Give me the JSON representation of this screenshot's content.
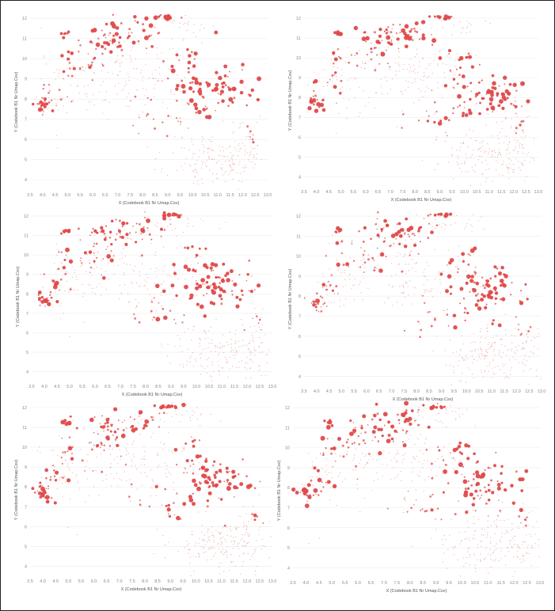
{
  "chart_data": [
    {
      "type": "scatter",
      "xlabel": "X (Codebook B1 Nr Umap.Csv)",
      "ylabel": "Y (Codebook B1 Nr Umap.Csv)",
      "xlim": [
        3.5,
        13.0
      ],
      "ylim": [
        3.5,
        12.2
      ],
      "xticks": [
        "3.5",
        "4.0",
        "4.5",
        "5.0",
        "5.5",
        "6.0",
        "6.5",
        "7.0",
        "7.5",
        "8.0",
        "8.5",
        "9.0",
        "9.5",
        "10.0",
        "10.5",
        "11.0",
        "11.5",
        "12.0",
        "12.5",
        "13.0"
      ],
      "yticks": [
        "4",
        "5",
        "6",
        "7",
        "8",
        "9",
        "10",
        "11",
        "12"
      ],
      "grid": "horizontal",
      "seed": 11
    },
    {
      "type": "scatter",
      "xlabel": "X (Codebook B1 Nr Umap.Csv)",
      "ylabel": "Y (Codebook B1 Nr Umap.Csv)",
      "xlim": [
        3.5,
        13.0
      ],
      "ylim": [
        3.5,
        12.2
      ],
      "xticks": [
        "3.5",
        "4.0",
        "4.5",
        "5.0",
        "5.5",
        "6.0",
        "6.5",
        "7.0",
        "7.5",
        "8.0",
        "8.5",
        "9.0",
        "9.5",
        "10.0",
        "10.5",
        "11.0",
        "11.5",
        "12.0",
        "12.5",
        "13.0"
      ],
      "yticks": [
        "4",
        "5",
        "6",
        "7",
        "8",
        "9",
        "10",
        "11",
        "12"
      ],
      "grid": "horizontal",
      "seed": 23
    },
    {
      "type": "scatter",
      "xlabel": "X (Codebook B1 Nr Umap.Csv)",
      "ylabel": "Y (Codebook B1 Nr Umap.Csv)",
      "xlim": [
        3.5,
        13.0
      ],
      "ylim": [
        3.5,
        12.2
      ],
      "xticks": [
        "3.5",
        "4.0",
        "4.5",
        "5.0",
        "5.5",
        "6.0",
        "6.5",
        "7.0",
        "7.5",
        "8.0",
        "8.5",
        "9.0",
        "9.5",
        "10.0",
        "10.5",
        "11.0",
        "11.5",
        "12.0",
        "12.5",
        "13.0"
      ],
      "yticks": [
        "4",
        "5",
        "6",
        "7",
        "8",
        "9",
        "10",
        "11",
        "12"
      ],
      "grid": "horizontal",
      "seed": 37
    },
    {
      "type": "scatter",
      "xlabel": "X (Codebook B1 Nr Umap.Csv)",
      "ylabel": "Y (Codebook B1 Nr Umap.Csv)",
      "xlim": [
        3.5,
        13.0
      ],
      "ylim": [
        3.5,
        12.2
      ],
      "xticks": [
        "3.5",
        "4.0",
        "4.5",
        "5.0",
        "5.5",
        "6.0",
        "6.5",
        "7.0",
        "7.5",
        "8.0",
        "8.5",
        "9.0",
        "9.5",
        "10.0",
        "10.5",
        "11.0",
        "11.5",
        "12.0",
        "12.5",
        "13.0"
      ],
      "yticks": [
        "4",
        "5",
        "6",
        "7",
        "8",
        "9",
        "10",
        "11",
        "12"
      ],
      "grid": "horizontal",
      "seed": 41
    },
    {
      "type": "scatter",
      "xlabel": "X (Codebook B1 Nr Umap.Csv)",
      "ylabel": "Y (Codebook B1 Nr Umap.Csv)",
      "xlim": [
        3.5,
        13.0
      ],
      "ylim": [
        3.5,
        12.2
      ],
      "xticks": [
        "3.5",
        "4.0",
        "4.5",
        "5.0",
        "5.5",
        "6.0",
        "6.5",
        "7.0",
        "7.5",
        "8.0",
        "8.5",
        "9.0",
        "9.5",
        "10.0",
        "10.5",
        "11.0",
        "11.5",
        "12.0",
        "12.5",
        "13.0"
      ],
      "yticks": [
        "4",
        "5",
        "6",
        "7",
        "8",
        "9",
        "10",
        "11",
        "12"
      ],
      "grid": "horizontal",
      "seed": 53
    },
    {
      "type": "scatter",
      "xlabel": "X (Codebook B1 Nr Umap.Csv)",
      "ylabel": "Y (Codebook B1 Nr Umap.Csv)",
      "xlim": [
        3.5,
        13.0
      ],
      "ylim": [
        3.5,
        12.2
      ],
      "xticks": [
        "3.5",
        "4.0",
        "4.5",
        "5.0",
        "5.5",
        "6.0",
        "6.5",
        "7.0",
        "7.5",
        "8.0",
        "8.5",
        "9.0",
        "9.5",
        "10.0",
        "10.5",
        "11.0",
        "11.5",
        "12.0",
        "12.5",
        "13.0"
      ],
      "yticks": [
        "4",
        "5",
        "6",
        "7",
        "8",
        "9",
        "10",
        "11",
        "12"
      ],
      "grid": "horizontal",
      "seed": 67
    }
  ],
  "colors": {
    "point": "#e04a4a",
    "grid": "#ececec",
    "tick_text": "#8a8a8a",
    "frame": "#222222"
  },
  "clusters": [
    {
      "x": 4.0,
      "y": 7.75,
      "sx": 0.22,
      "sy": 0.25,
      "n": 22,
      "big": 0.55
    },
    {
      "x": 4.5,
      "y": 8.5,
      "sx": 0.3,
      "sy": 0.5,
      "n": 12,
      "big": 0.35
    },
    {
      "x": 4.9,
      "y": 11.25,
      "sx": 0.12,
      "sy": 0.08,
      "n": 6,
      "big": 0.9
    },
    {
      "x": 4.9,
      "y": 9.9,
      "sx": 0.2,
      "sy": 0.5,
      "n": 8,
      "big": 0.3
    },
    {
      "x": 6.8,
      "y": 11.0,
      "sx": 0.6,
      "sy": 0.5,
      "n": 45,
      "big": 0.45
    },
    {
      "x": 6.0,
      "y": 10.0,
      "sx": 0.5,
      "sy": 0.5,
      "n": 20,
      "big": 0.2
    },
    {
      "x": 8.0,
      "y": 11.3,
      "sx": 0.4,
      "sy": 0.4,
      "n": 18,
      "big": 0.3
    },
    {
      "x": 9.0,
      "y": 12.05,
      "sx": 0.3,
      "sy": 0.05,
      "n": 12,
      "big": 0.7
    },
    {
      "x": 10.9,
      "y": 8.3,
      "sx": 0.75,
      "sy": 0.65,
      "n": 75,
      "big": 0.6
    },
    {
      "x": 10.0,
      "y": 10.1,
      "sx": 0.2,
      "sy": 0.2,
      "n": 6,
      "big": 0.7
    },
    {
      "x": 9.6,
      "y": 9.3,
      "sx": 0.4,
      "sy": 0.5,
      "n": 12,
      "big": 0.35
    },
    {
      "x": 9.2,
      "y": 7.0,
      "sx": 0.4,
      "sy": 0.4,
      "n": 10,
      "big": 0.3
    },
    {
      "x": 12.3,
      "y": 6.4,
      "sx": 0.2,
      "sy": 0.3,
      "n": 6,
      "big": 0.2
    },
    {
      "x": 8.3,
      "y": 7.2,
      "sx": 0.5,
      "sy": 0.5,
      "n": 10,
      "big": 0.1
    }
  ],
  "faint": [
    {
      "x": 11.0,
      "y": 5.0,
      "sx": 1.0,
      "sy": 0.7,
      "n": 170
    },
    {
      "x": 7.8,
      "y": 9.2,
      "sx": 1.1,
      "sy": 0.9,
      "n": 110
    },
    {
      "x": 5.0,
      "y": 8.6,
      "sx": 0.6,
      "sy": 1.0,
      "n": 45
    },
    {
      "x": 12.2,
      "y": 5.8,
      "sx": 0.4,
      "sy": 0.8,
      "n": 30
    },
    {
      "x": 9.6,
      "y": 11.6,
      "sx": 0.7,
      "sy": 0.3,
      "n": 25
    }
  ]
}
